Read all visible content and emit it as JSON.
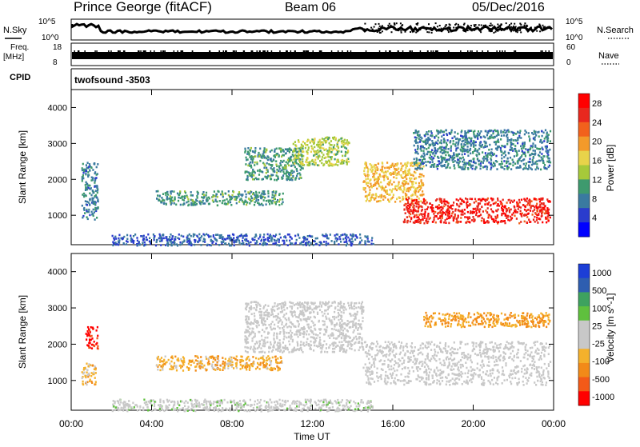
{
  "header": {
    "station": "Prince George (fitACF)",
    "beam": "Beam 06",
    "date": "05/Dec/2016"
  },
  "top_panels": {
    "nsky_label": "N.Sky",
    "nsky_ticks": [
      "10^5",
      "10^0"
    ],
    "nsearch_label": "N.Search",
    "nsearch_ticks": [
      "10^5",
      "10^0"
    ],
    "freq_label": "Freq.",
    "freq_unit": "[MHz]",
    "freq_ticks": [
      "18",
      "8"
    ],
    "nave_label": "Nave",
    "nave_ticks": [
      "60",
      "0"
    ],
    "cpid_label": "CPID",
    "cpid_value": "twofsound  -3503"
  },
  "colors": {
    "power_scale": [
      "#0000ff",
      "#2a3ccd",
      "#3a7aa0",
      "#3e9a6e",
      "#a6c93a",
      "#e8d34a",
      "#f39a2a",
      "#f2611c",
      "#e8281e",
      "#ff0000"
    ],
    "velocity_scale": [
      "#ff0000",
      "#f35a18",
      "#f28a18",
      "#f4b12c",
      "#c8c8c8",
      "#c8c8c8",
      "#5fc03e",
      "#3ea25f",
      "#2e5eb0",
      "#1c3ed6"
    ]
  },
  "chart_data": [
    {
      "type": "heatmap",
      "title": "Power",
      "ylabel": "Slant Range [km]",
      "xlabel": "Time UT",
      "x_ticks": [
        "00:00",
        "04:00",
        "08:00",
        "12:00",
        "16:00",
        "20:00",
        "00:00"
      ],
      "y_ticks": [
        "1000",
        "2000",
        "3000",
        "4000"
      ],
      "x_range_hours": [
        0,
        24
      ],
      "y_range_km": [
        180,
        4500
      ],
      "colorbar_label": "Power [dB]",
      "colorbar_ticks": [
        "4",
        "8",
        "12",
        "16",
        "20",
        "24",
        "28"
      ],
      "colorbar_range": [
        0,
        30
      ],
      "scatter_regions": [
        {
          "t0": 0.5,
          "t1": 1.3,
          "r0": 900,
          "r1": 2500,
          "value": 8
        },
        {
          "t0": 4.2,
          "t1": 10.5,
          "r0": 1300,
          "r1": 1700,
          "value": 10
        },
        {
          "t0": 8.6,
          "t1": 11.5,
          "r0": 2000,
          "r1": 2900,
          "value": 10
        },
        {
          "t0": 11.0,
          "t1": 13.8,
          "r0": 2400,
          "r1": 3200,
          "value": 14
        },
        {
          "t0": 14.5,
          "t1": 17.5,
          "r0": 1400,
          "r1": 2500,
          "value": 18
        },
        {
          "t0": 16.5,
          "t1": 23.8,
          "r0": 800,
          "r1": 1500,
          "value": 26
        },
        {
          "t0": 17.0,
          "t1": 23.8,
          "r0": 2300,
          "r1": 3400,
          "value": 8
        },
        {
          "t0": 2.0,
          "t1": 15.0,
          "r0": 180,
          "r1": 500,
          "value": 6
        }
      ]
    },
    {
      "type": "heatmap",
      "title": "Velocity",
      "ylabel": "Slant Range [km]",
      "xlabel": "Time UT",
      "x_ticks": [
        "00:00",
        "04:00",
        "08:00",
        "12:00",
        "16:00",
        "20:00",
        "00:00"
      ],
      "y_ticks": [
        "1000",
        "2000",
        "3000",
        "4000"
      ],
      "x_range_hours": [
        0,
        24
      ],
      "y_range_km": [
        180,
        4500
      ],
      "colorbar_label": "Velocity [m s^-1]",
      "colorbar_ticks": [
        "1000",
        "500",
        "100",
        "25",
        "-25",
        "-100",
        "-500",
        "-1000"
      ],
      "colorbar_range": [
        -1000,
        1000
      ],
      "scatter_regions": [
        {
          "t0": 0.7,
          "t1": 1.3,
          "r0": 1900,
          "r1": 2500,
          "value": -900
        },
        {
          "t0": 0.5,
          "t1": 1.2,
          "r0": 900,
          "r1": 1500,
          "value": -300
        },
        {
          "t0": 4.2,
          "t1": 10.5,
          "r0": 1300,
          "r1": 1700,
          "value": -300
        },
        {
          "t0": 8.6,
          "t1": 14.5,
          "r0": 1800,
          "r1": 3200,
          "value": 0
        },
        {
          "t0": 14.5,
          "t1": 23.8,
          "r0": 900,
          "r1": 2100,
          "value": 0
        },
        {
          "t0": 17.5,
          "t1": 23.8,
          "r0": 2500,
          "r1": 2900,
          "value": -400
        },
        {
          "t0": 2.0,
          "t1": 15.0,
          "r0": 180,
          "r1": 500,
          "value": 60
        }
      ]
    }
  ]
}
